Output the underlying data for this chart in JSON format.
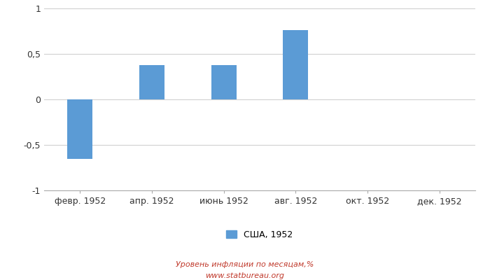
{
  "categories": [
    "февр. 1952",
    "апр. 1952",
    "июнь 1952",
    "авг. 1952",
    "окт. 1952",
    "дек. 1952"
  ],
  "values": [
    -0.65,
    0.38,
    0.38,
    0.76,
    0.0,
    0.0
  ],
  "bar_color": "#5B9BD5",
  "ylim": [
    -1,
    1
  ],
  "yticks": [
    -1,
    -0.5,
    0,
    0.5,
    1
  ],
  "ytick_labels": [
    "-1",
    "-0,5",
    "0",
    "0,5",
    "1"
  ],
  "legend_label": "США, 1952",
  "footer_line1": "Уровень инфляции по месяцам,%",
  "footer_line2": "www.statbureau.org",
  "background_color": "#ffffff",
  "grid_color": "#d0d0d0",
  "bar_width": 0.35,
  "tick_fontsize": 9,
  "legend_fontsize": 9,
  "footer_fontsize": 8,
  "footer_color": "#c0392b"
}
